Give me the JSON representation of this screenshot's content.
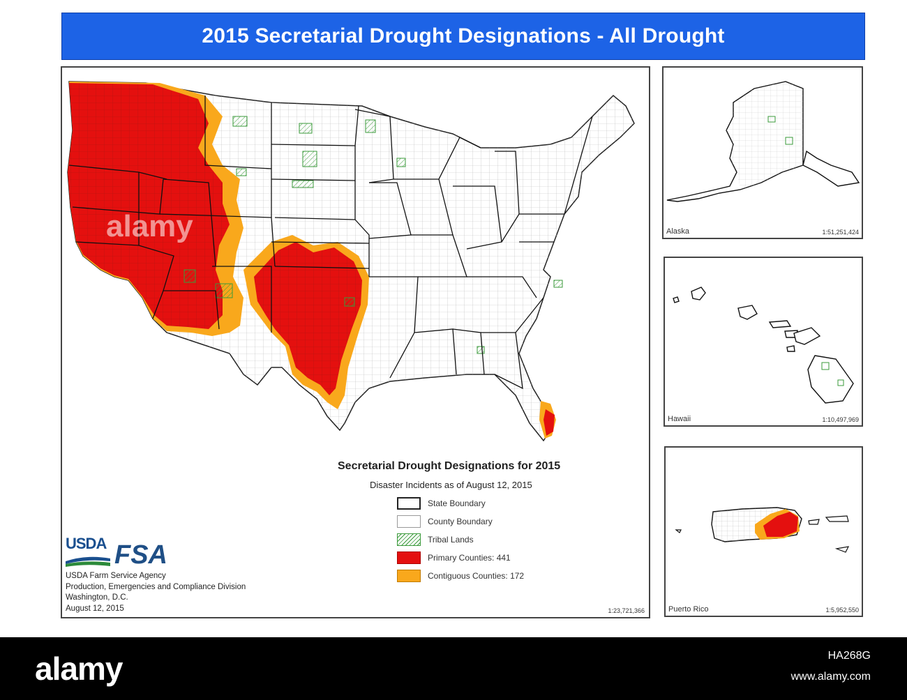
{
  "banner": {
    "title": "2015 Secretarial Drought Designations - All Drought"
  },
  "main_map": {
    "scale": "1:23,721,366"
  },
  "legend": {
    "title": "Secretarial Drought Designations for 2015",
    "subtitle": "Disaster Incidents as of August 12, 2015",
    "items": [
      {
        "label": "State Boundary",
        "color": "#ffffff"
      },
      {
        "label": "County Boundary",
        "color": "#ffffff"
      },
      {
        "label": "Tribal  Lands",
        "color": "#3a9a3a"
      },
      {
        "label": "Primary Counties: 441",
        "color": "#e4100f"
      },
      {
        "label": "Contiguous Counties: 172",
        "color": "#f9a81c"
      }
    ]
  },
  "agency": {
    "logo_usda": "USDA",
    "logo_fsa": "FSA",
    "lines": [
      "USDA Farm Service Agency",
      "Production, Emergencies and Compliance Division",
      "Washington, D.C.",
      "August 12, 2015"
    ]
  },
  "insets": {
    "alaska": {
      "label": "Alaska",
      "scale": "1:51,251,424"
    },
    "hawaii": {
      "label": "Hawaii",
      "scale": "1:10,497,969"
    },
    "puerto_rico": {
      "label": "Puerto Rico",
      "scale": "1:5,952,550"
    }
  },
  "colors": {
    "banner": "#1d63e6",
    "primary": "#e4100f",
    "contiguous": "#f9a81c",
    "tribal": "#3a9a3a"
  },
  "watermark": {
    "logo": "alamy",
    "image_id": "HA268G",
    "url": "www.alamy.com",
    "overlay": "alamy"
  }
}
